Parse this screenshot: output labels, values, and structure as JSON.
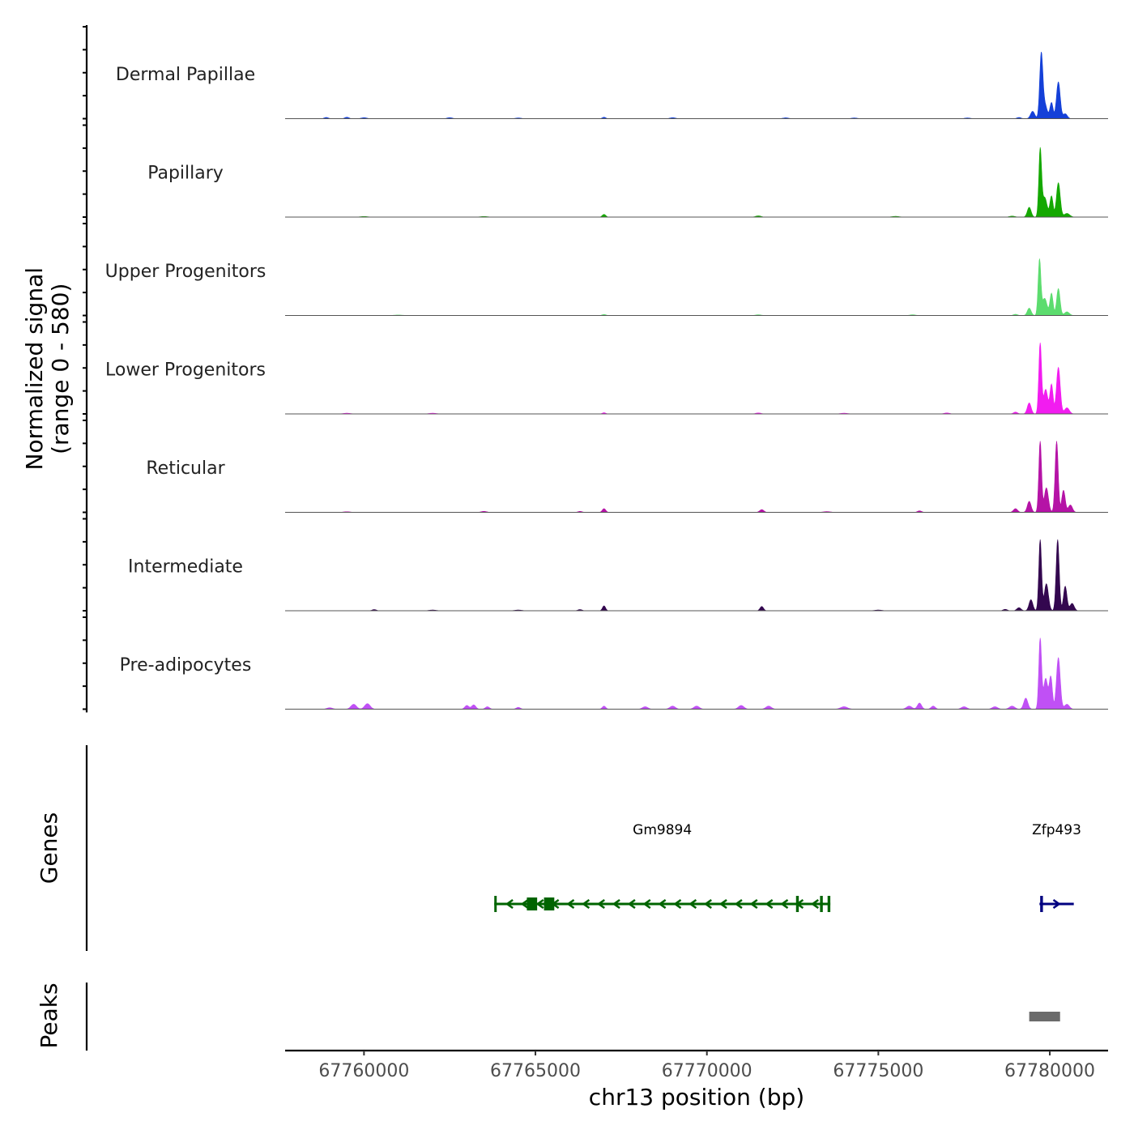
{
  "chart_data": {
    "type": "area",
    "title": "",
    "xlabel": "chr13 position (bp)",
    "ylabel": "Normalized signal\n(range 0 - 580)",
    "ylabel_lines": [
      "Normalized signal",
      "(range 0 - 580)"
    ],
    "xlim": [
      67757700,
      67781700
    ],
    "ylim": [
      0,
      580
    ],
    "x_ticks": [
      67760000,
      67765000,
      67770000,
      67775000,
      67780000
    ],
    "x_tick_labels": [
      "67760000",
      "67765000",
      "67770000",
      "67775000",
      "67780000"
    ],
    "panel_titles": {
      "genes": "Genes",
      "peaks": "Peaks"
    },
    "tracks": [
      {
        "name": "Dermal Papillae",
        "color": "#1440d8",
        "bumps": [
          [
            67758900,
            10,
            60
          ],
          [
            67759500,
            12,
            60
          ],
          [
            67760000,
            8,
            80
          ],
          [
            67762500,
            8,
            80
          ],
          [
            67764500,
            6,
            80
          ],
          [
            67767000,
            12,
            50
          ],
          [
            67769000,
            8,
            80
          ],
          [
            67772300,
            7,
            80
          ],
          [
            67774300,
            6,
            80
          ],
          [
            67777600,
            6,
            80
          ],
          [
            67779100,
            10,
            60
          ],
          [
            67779500,
            60,
            60
          ],
          [
            67779750,
            500,
            45
          ],
          [
            67779850,
            120,
            70
          ],
          [
            67780050,
            130,
            45
          ],
          [
            67780250,
            300,
            55
          ],
          [
            67780450,
            40,
            60
          ]
        ]
      },
      {
        "name": "Papillary",
        "color": "#14a800",
        "bumps": [
          [
            67760000,
            5,
            100
          ],
          [
            67763500,
            5,
            100
          ],
          [
            67767000,
            22,
            50
          ],
          [
            67771500,
            10,
            80
          ],
          [
            67775500,
            6,
            100
          ],
          [
            67778900,
            8,
            80
          ],
          [
            67779400,
            80,
            55
          ],
          [
            67779720,
            540,
            40
          ],
          [
            67779850,
            160,
            70
          ],
          [
            67780050,
            170,
            45
          ],
          [
            67780250,
            280,
            55
          ],
          [
            67780500,
            30,
            80
          ]
        ]
      },
      {
        "name": "Upper Progenitors",
        "color": "#5cdc6e",
        "bumps": [
          [
            67761000,
            4,
            120
          ],
          [
            67767000,
            8,
            60
          ],
          [
            67771500,
            6,
            80
          ],
          [
            67776000,
            6,
            80
          ],
          [
            67779000,
            10,
            60
          ],
          [
            67779400,
            60,
            55
          ],
          [
            67779700,
            450,
            40
          ],
          [
            67779850,
            140,
            70
          ],
          [
            67780050,
            180,
            45
          ],
          [
            67780250,
            220,
            50
          ],
          [
            67780500,
            30,
            70
          ]
        ]
      },
      {
        "name": "Lower Progenitors",
        "color": "#f21cf0",
        "bumps": [
          [
            67759500,
            6,
            100
          ],
          [
            67762000,
            6,
            100
          ],
          [
            67767000,
            10,
            50
          ],
          [
            67771500,
            8,
            80
          ],
          [
            67774000,
            6,
            100
          ],
          [
            67777000,
            8,
            80
          ],
          [
            67779000,
            15,
            60
          ],
          [
            67779400,
            90,
            55
          ],
          [
            67779720,
            580,
            40
          ],
          [
            67779880,
            200,
            60
          ],
          [
            67780050,
            240,
            45
          ],
          [
            67780250,
            380,
            55
          ],
          [
            67780500,
            50,
            70
          ]
        ]
      },
      {
        "name": "Reticular",
        "color": "#b513a6",
        "bumps": [
          [
            67759500,
            5,
            100
          ],
          [
            67763500,
            8,
            80
          ],
          [
            67766300,
            8,
            60
          ],
          [
            67767000,
            30,
            50
          ],
          [
            67771600,
            22,
            60
          ],
          [
            67773500,
            6,
            100
          ],
          [
            67776200,
            12,
            60
          ],
          [
            67779000,
            30,
            60
          ],
          [
            67779400,
            90,
            55
          ],
          [
            67779720,
            580,
            40
          ],
          [
            67779900,
            200,
            60
          ],
          [
            67780200,
            580,
            45
          ],
          [
            67780400,
            180,
            50
          ],
          [
            67780600,
            60,
            60
          ]
        ]
      },
      {
        "name": "Intermediate",
        "color": "#33074f",
        "bumps": [
          [
            67760300,
            10,
            60
          ],
          [
            67762000,
            6,
            100
          ],
          [
            67764500,
            6,
            100
          ],
          [
            67766300,
            10,
            60
          ],
          [
            67767000,
            40,
            45
          ],
          [
            67771600,
            35,
            50
          ],
          [
            67775000,
            6,
            100
          ],
          [
            67778700,
            12,
            60
          ],
          [
            67779100,
            25,
            60
          ],
          [
            67779450,
            90,
            55
          ],
          [
            67779720,
            580,
            40
          ],
          [
            67779900,
            220,
            60
          ],
          [
            67780230,
            580,
            45
          ],
          [
            67780450,
            200,
            50
          ],
          [
            67780650,
            60,
            60
          ]
        ]
      },
      {
        "name": "Pre-adipocytes",
        "color": "#c050f5",
        "bumps": [
          [
            67759000,
            12,
            80
          ],
          [
            67759700,
            40,
            80
          ],
          [
            67760100,
            45,
            80
          ],
          [
            67763000,
            30,
            60
          ],
          [
            67763200,
            35,
            60
          ],
          [
            67763600,
            20,
            60
          ],
          [
            67764500,
            15,
            60
          ],
          [
            67767000,
            25,
            50
          ],
          [
            67768200,
            20,
            80
          ],
          [
            67769000,
            25,
            80
          ],
          [
            67769700,
            25,
            80
          ],
          [
            67771000,
            30,
            80
          ],
          [
            67771800,
            25,
            80
          ],
          [
            67774000,
            20,
            100
          ],
          [
            67775900,
            25,
            80
          ],
          [
            67776200,
            50,
            60
          ],
          [
            67776600,
            25,
            60
          ],
          [
            67777500,
            20,
            80
          ],
          [
            67778400,
            20,
            80
          ],
          [
            67778900,
            25,
            80
          ],
          [
            67779300,
            90,
            60
          ],
          [
            67779720,
            580,
            40
          ],
          [
            67779880,
            250,
            60
          ],
          [
            67780030,
            260,
            45
          ],
          [
            67780250,
            420,
            55
          ],
          [
            67780500,
            40,
            70
          ]
        ]
      }
    ],
    "genes": [
      {
        "name": "Gm9894",
        "strand": "-",
        "start": 67763800,
        "end": 67773600,
        "color": "#006400",
        "exons": [
          [
            67763800,
            67763860
          ],
          [
            67764750,
            67765050
          ],
          [
            67765250,
            67765550
          ],
          [
            67772600,
            67772680
          ],
          [
            67773300,
            67773380
          ],
          [
            67773520,
            67773600
          ]
        ]
      },
      {
        "name": "Zfp493",
        "strand": "+",
        "start": 67779700,
        "end": 67780700,
        "color": "#000080",
        "exons": [
          [
            67779720,
            67779800
          ]
        ]
      }
    ],
    "peaks": [
      {
        "start": 67779400,
        "end": 67780300,
        "color": "#6b6b6b"
      }
    ]
  }
}
